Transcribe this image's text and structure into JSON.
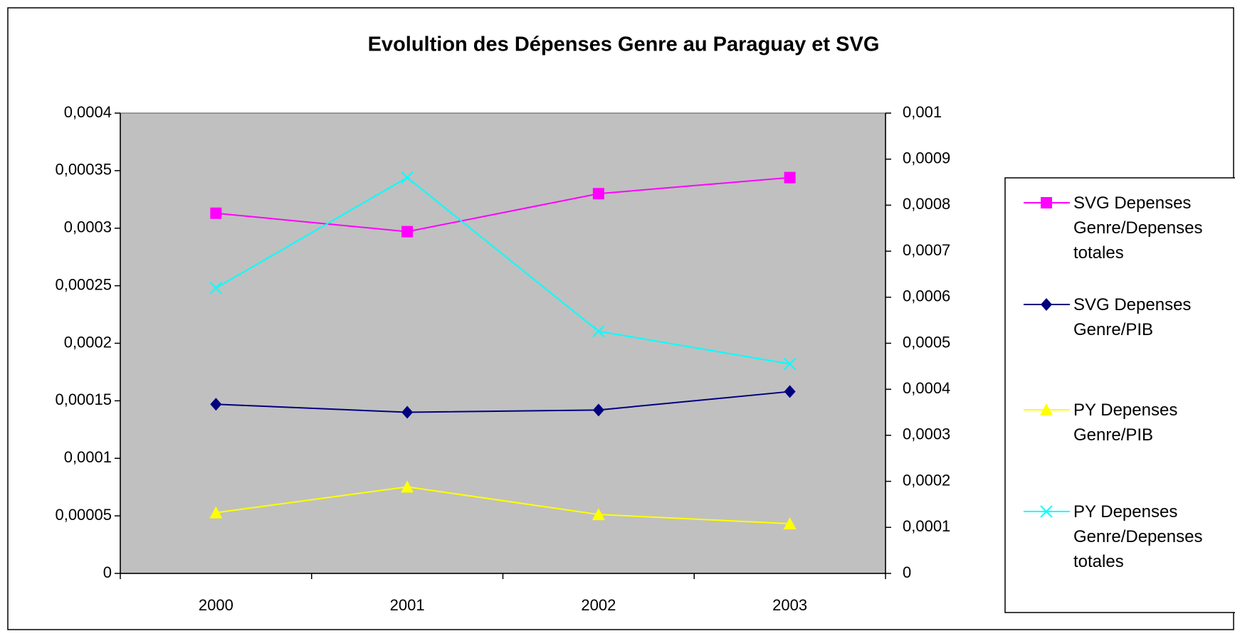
{
  "chart_data": {
    "type": "line",
    "title": "Evolultion des Dépenses Genre au Paraguay et SVG",
    "categories": [
      "2000",
      "2001",
      "2002",
      "2003"
    ],
    "ylim": [
      0,
      0.0004
    ],
    "yticks": [
      0,
      {
        "value": 5e-05,
        "label": "0,00005"
      },
      {
        "value": 0.0001,
        "label": "0,0001"
      },
      {
        "value": 0.00015,
        "label": "0,00015"
      },
      {
        "value": 0.0002,
        "label": "0,0002"
      },
      {
        "value": 0.00025,
        "label": "0,00025"
      },
      {
        "value": 0.0003,
        "label": "0,0003"
      },
      {
        "value": 0.00035,
        "label": "0,00035"
      },
      {
        "value": 0.0004,
        "label": "0,0004"
      }
    ],
    "y2lim": [
      0,
      0.001
    ],
    "y2ticks": [
      0,
      {
        "value": 0.0001,
        "label": "0,0001"
      },
      {
        "value": 0.0002,
        "label": "0,0002"
      },
      {
        "value": 0.0003,
        "label": "0,0003"
      },
      {
        "value": 0.0004,
        "label": "0,0004"
      },
      {
        "value": 0.0005,
        "label": "0,0005"
      },
      {
        "value": 0.0006,
        "label": "0,0006"
      },
      {
        "value": 0.0007,
        "label": "0,0007"
      },
      {
        "value": 0.0008,
        "label": "0,0008"
      },
      {
        "value": 0.0009,
        "label": "0,0009"
      },
      {
        "value": 0.001,
        "label": "0,001"
      }
    ],
    "legend": "right",
    "series": [
      {
        "name": "SVG Depenses Genre/Depenses totales",
        "color": "#ff00ff",
        "marker": "square",
        "values": [
          0.000313,
          0.000297,
          0.00033,
          0.000344
        ]
      },
      {
        "name": "SVG Depenses Genre/PIB",
        "color": "#000080",
        "marker": "diamond",
        "values": [
          0.000147,
          0.00014,
          0.000142,
          0.000158
        ]
      },
      {
        "name": "PY Depenses Genre/PIB",
        "color": "#ffff00",
        "marker": "triangle",
        "axis": "y2",
        "values": [
          0.000132,
          0.000188,
          0.000128,
          0.000108
        ]
      },
      {
        "name": "PY Depenses Genre/Depenses totales",
        "color": "#00ffff",
        "marker": "x",
        "axis": "y2",
        "values": [
          0.00062,
          0.00086,
          0.000526,
          0.000455
        ]
      }
    ]
  }
}
